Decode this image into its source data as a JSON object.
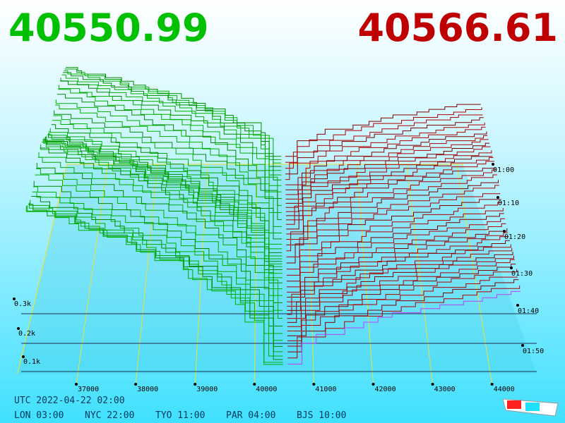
{
  "header": {
    "bid": "40550.99",
    "ask": "40566.61"
  },
  "price_axis": [
    "37000",
    "38000",
    "39000",
    "40000",
    "41000",
    "42000",
    "43000",
    "44000"
  ],
  "depth_axis": [
    "0.1k",
    "0.2k",
    "0.3k"
  ],
  "time_axis": [
    "01:00",
    "01:10",
    "01:20",
    "01:30",
    "01:40",
    "01:50"
  ],
  "footer": {
    "utc": "UTC 2022-04-22 02:00",
    "zones": [
      "LON 03:00",
      "NYC 22:00",
      "TYO 11:00",
      "PAR 04:00",
      "BJS 10:00"
    ]
  }
}
